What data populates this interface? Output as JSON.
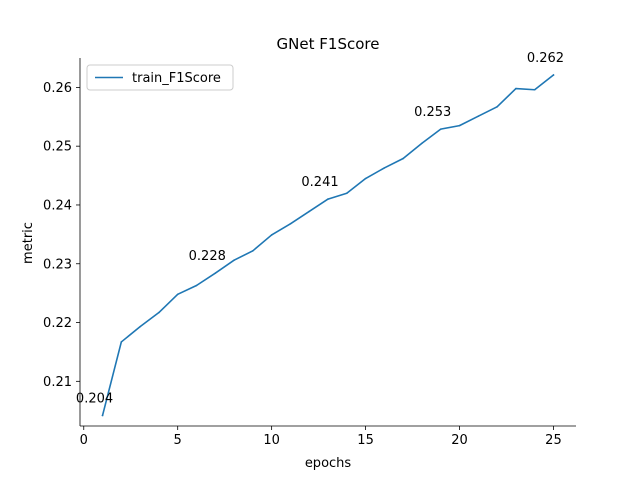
{
  "chart_data": {
    "type": "line",
    "title": "GNet F1Score",
    "xlabel": "epochs",
    "ylabel": "metric",
    "xlim": [
      -0.2,
      26.2
    ],
    "ylim": [
      0.2024,
      0.265
    ],
    "xticks": [
      0,
      5,
      10,
      15,
      20,
      25
    ],
    "yticks": [
      0.21,
      0.22,
      0.23,
      0.24,
      0.25,
      0.26
    ],
    "grid": false,
    "legend_position": "top-left",
    "series": [
      {
        "name": "train_F1Score",
        "color": "#1f77b4",
        "x": [
          1,
          2,
          3,
          4,
          5,
          6,
          7,
          8,
          9,
          10,
          11,
          12,
          13,
          14,
          15,
          16,
          17,
          18,
          19,
          20,
          21,
          22,
          23,
          24,
          25
        ],
        "y": [
          0.2042,
          0.2167,
          0.2193,
          0.2217,
          0.2248,
          0.2263,
          0.2284,
          0.2306,
          0.2322,
          0.2349,
          0.2368,
          0.2389,
          0.241,
          0.242,
          0.2445,
          0.2463,
          0.2479,
          0.2505,
          0.2529,
          0.2535,
          0.2551,
          0.2567,
          0.2598,
          0.2596,
          0.2621
        ]
      }
    ],
    "annotations": [
      {
        "x": 1,
        "y": 0.2042,
        "label": "0.204"
      },
      {
        "x": 7,
        "y": 0.2284,
        "label": "0.228"
      },
      {
        "x": 13,
        "y": 0.241,
        "label": "0.241"
      },
      {
        "x": 19,
        "y": 0.2529,
        "label": "0.253"
      },
      {
        "x": 25,
        "y": 0.2621,
        "label": "0.262"
      }
    ]
  }
}
